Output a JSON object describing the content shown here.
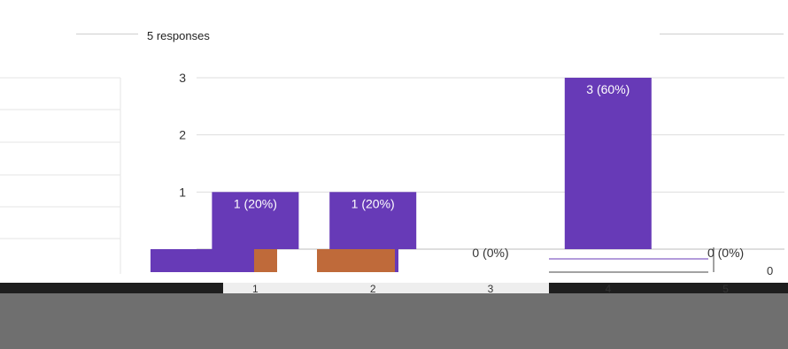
{
  "header": {
    "responses_text": "5 responses"
  },
  "colors": {
    "bar": "#673ab7",
    "bar_alt": "#bf6a3a",
    "grid": "#dddddd",
    "label_light": "#ffffff",
    "label_dark": "#333333"
  },
  "chart_data": {
    "type": "bar",
    "categories": [
      "1",
      "2",
      "3",
      "4",
      "5"
    ],
    "values": [
      1,
      1,
      0,
      3,
      0
    ],
    "labels": [
      "1 (20%)",
      "1 (20%)",
      "0 (0%)",
      "3 (60%)",
      "0 (0%)"
    ],
    "title": "",
    "xlabel": "",
    "ylabel": "",
    "ylim": [
      0,
      3
    ],
    "yticks": [
      "1",
      "2",
      "3"
    ],
    "grid": true,
    "legend": "none"
  },
  "overlay": {
    "zero_label": "0"
  }
}
